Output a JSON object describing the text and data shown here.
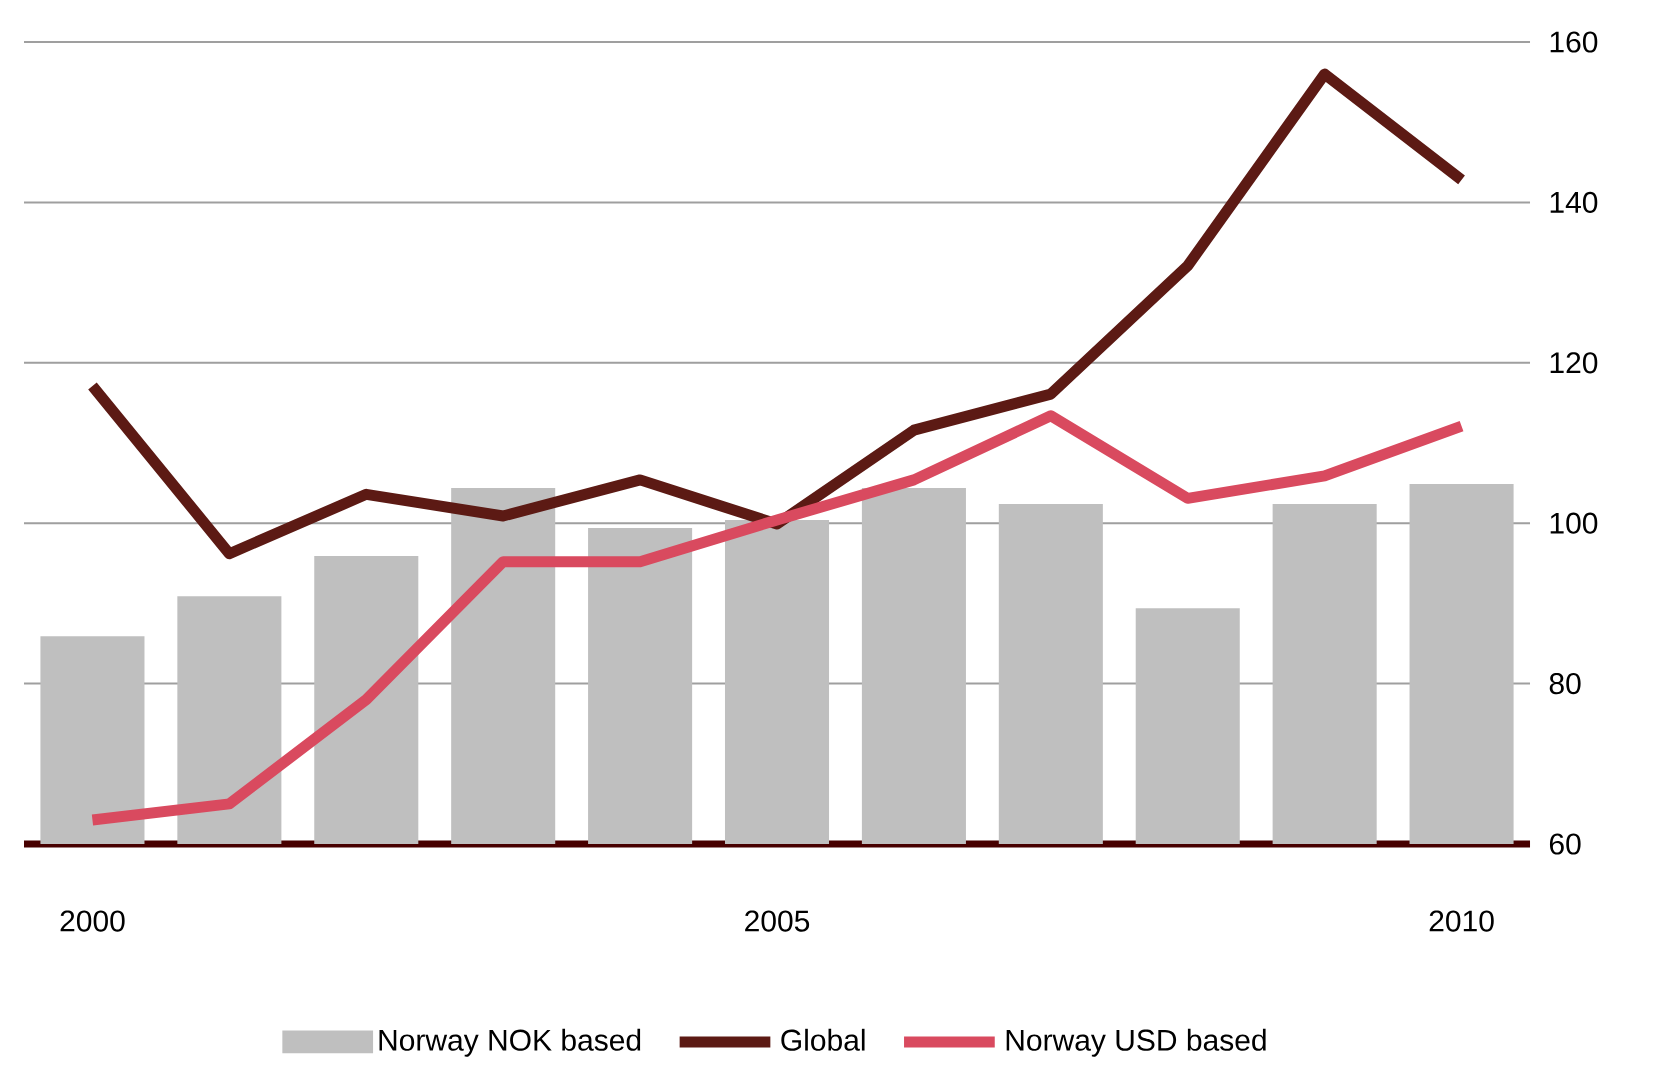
{
  "chart_data": {
    "type": "bar",
    "x": [
      2000,
      2001,
      2002,
      2003,
      2004,
      2005,
      2006,
      2007,
      2008,
      2009,
      2010
    ],
    "series": [
      {
        "name": "Norway NOK based",
        "color": "#bfbfbf",
        "values": [
          85.9,
          90.9,
          95.9,
          104.4,
          99.4,
          100.4,
          104.4,
          102.4,
          89.4,
          102.4,
          104.9
        ]
      },
      {
        "name": "Global",
        "type": "line",
        "color": "#5c1a14",
        "values": [
          117.1,
          96.2,
          103.6,
          100.9,
          105.4,
          99.9,
          111.6,
          116.1,
          132.1,
          156.0,
          142.8
        ]
      },
      {
        "name": "Norway USD based",
        "type": "line",
        "color": "#d94a5f",
        "values": [
          63.0,
          65.0,
          78.0,
          95.2,
          95.2,
          100.4,
          105.4,
          113.4,
          103.1,
          105.9,
          112.1
        ]
      }
    ],
    "xlim": [
      1999.5,
      2010.5
    ],
    "xticks": [
      2000,
      2005,
      2010
    ],
    "ylim": [
      60,
      160
    ],
    "yticks": [
      60,
      80,
      100,
      120,
      140,
      160
    ],
    "grid": "y",
    "legend": "bottom",
    "marker": "none"
  }
}
